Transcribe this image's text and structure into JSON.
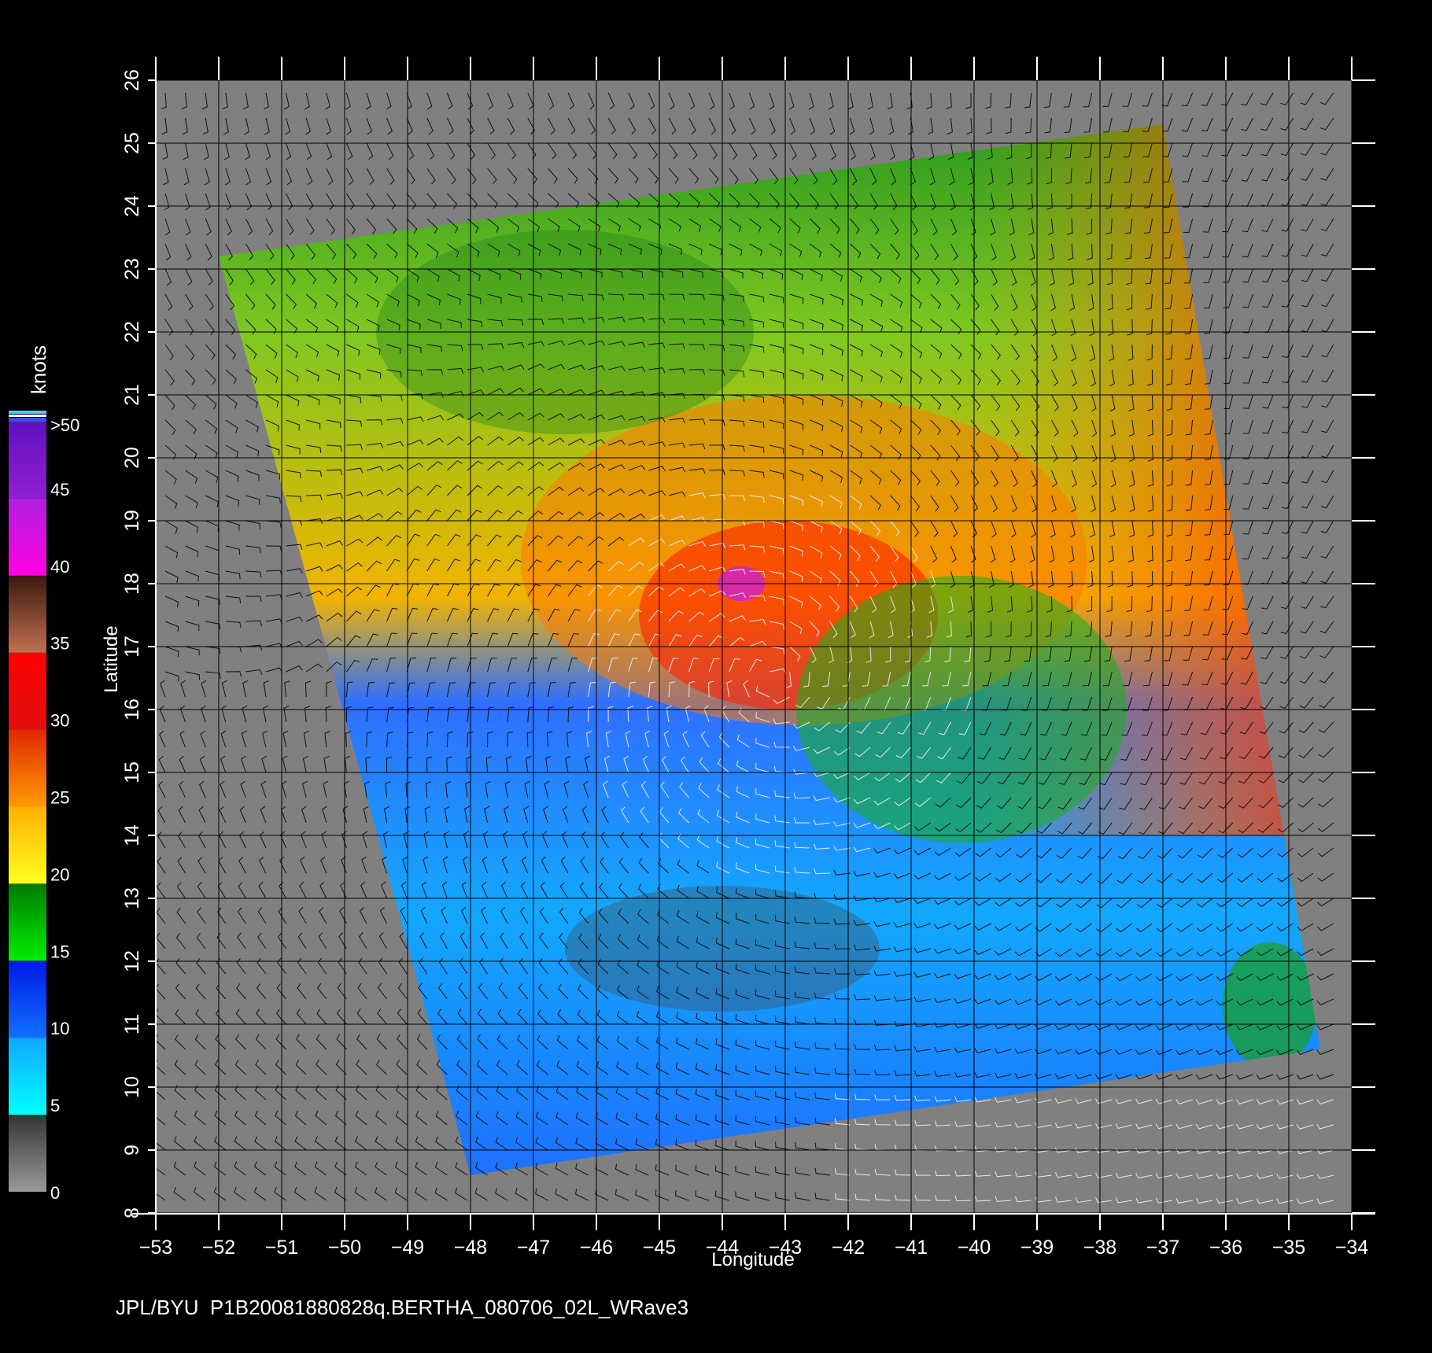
{
  "map": {
    "lon_range": [
      -53,
      -34
    ],
    "lat_range": [
      8,
      26
    ],
    "lon_ticks": [
      "−53",
      "−52",
      "−51",
      "−50",
      "−49",
      "−48",
      "−47",
      "−46",
      "−45",
      "−44",
      "−43",
      "−42",
      "−41",
      "−40",
      "−39",
      "−38",
      "−37",
      "−36",
      "−35",
      "−34"
    ],
    "lat_ticks": [
      "8",
      "9",
      "10",
      "11",
      "12",
      "13",
      "14",
      "15",
      "16",
      "17",
      "18",
      "19",
      "20",
      "21",
      "22",
      "23",
      "24",
      "25",
      "26"
    ],
    "xlabel": "Longitude",
    "ylabel": "Latitude",
    "storm_center": {
      "lon": -43.2,
      "lat": 16.5
    },
    "swath_corners": [
      {
        "lon": -52.0,
        "lat": 23.2
      },
      {
        "lon": -37.0,
        "lat": 25.3
      },
      {
        "lon": -34.5,
        "lat": 10.6
      },
      {
        "lon": -48.0,
        "lat": 8.6
      }
    ]
  },
  "colorbar": {
    "unit": "knots",
    "labels": [
      ">50",
      "45",
      "40",
      "35",
      "30",
      "25",
      "20",
      "15",
      "10",
      "5",
      "0"
    ],
    "bands": [
      {
        "min": 0,
        "max": 5,
        "top": "#333333",
        "bottom": "#9a9a9a"
      },
      {
        "min": 5,
        "max": 10,
        "top": "#10a8ff",
        "bottom": "#00ffff"
      },
      {
        "min": 10,
        "max": 15,
        "top": "#0018e8",
        "bottom": "#1070ff"
      },
      {
        "min": 15,
        "max": 20,
        "top": "#007a00",
        "bottom": "#00ee00"
      },
      {
        "min": 20,
        "max": 25,
        "top": "#ffb000",
        "bottom": "#ffff20"
      },
      {
        "min": 25,
        "max": 30,
        "top": "#e02800",
        "bottom": "#ff9a00"
      },
      {
        "min": 30,
        "max": 35,
        "top": "#ff0000",
        "bottom": "#e01010"
      },
      {
        "min": 35,
        "max": 40,
        "top": "#3a1a10",
        "bottom": "#c07050"
      },
      {
        "min": 40,
        "max": 45,
        "top": "#b020e0",
        "bottom": "#ff00e0"
      },
      {
        "min": 45,
        "max": 50,
        "top": "#6010c0",
        "bottom": "#9020d0"
      }
    ]
  },
  "footer": {
    "credit": "JPL/BYU  P1B20081880828q.BERTHA_080706_02L_WRave3"
  }
}
